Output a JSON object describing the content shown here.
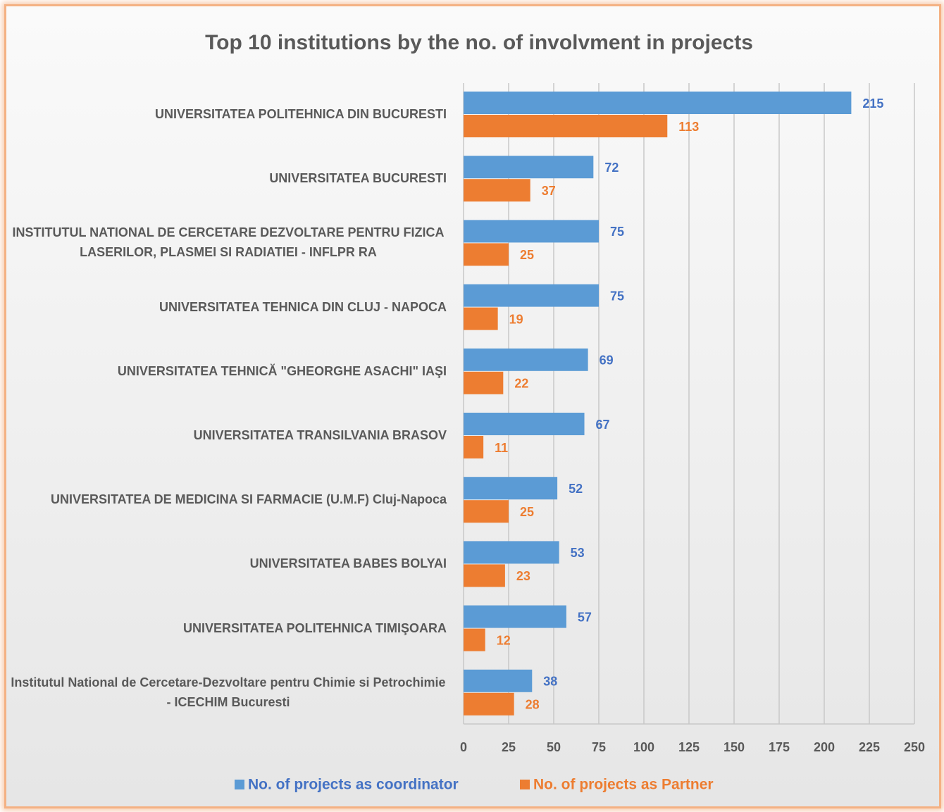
{
  "chart_data": {
    "type": "hbar",
    "title": "Top 10 institutions by the no. of involvment in projects",
    "categories": [
      "UNIVERSITATEA POLITEHNICA DIN BUCURESTI",
      "UNIVERSITATEA BUCURESTI",
      "INSTITUTUL NATIONAL DE CERCETARE DEZVOLTARE PENTRU FIZICA LASERILOR, PLASMEI SI RADIATIEI - INFLPR RA",
      "UNIVERSITATEA TEHNICA DIN CLUJ - NAPOCA",
      "UNIVERSITATEA TEHNICĂ \"GHEORGHE ASACHI\" IAŞI",
      "UNIVERSITATEA TRANSILVANIA BRASOV",
      "UNIVERSITATEA DE MEDICINA SI FARMACIE (U.M.F) Cluj-Napoca",
      "UNIVERSITATEA BABES BOLYAI",
      "UNIVERSITATEA POLITEHNICA TIMIŞOARA",
      "Institutul National de Cercetare-Dezvoltare pentru Chimie si Petrochimie - ICECHIM Bucuresti"
    ],
    "series": [
      {
        "name": "No. of projects as coordinator",
        "color": "#5b9bd5",
        "label_color": "#4472c4",
        "values": [
          215,
          72,
          75,
          75,
          69,
          67,
          52,
          53,
          57,
          38
        ]
      },
      {
        "name": "No. of projects as Partner",
        "color": "#ed7d31",
        "label_color": "#ed7d31",
        "values": [
          113,
          37,
          25,
          19,
          22,
          11,
          25,
          23,
          12,
          28
        ]
      }
    ],
    "xlim": [
      0,
      250
    ],
    "xticks": [
      0,
      25,
      50,
      75,
      100,
      125,
      150,
      175,
      200,
      225,
      250
    ],
    "grid": true,
    "legend": "bottom"
  }
}
